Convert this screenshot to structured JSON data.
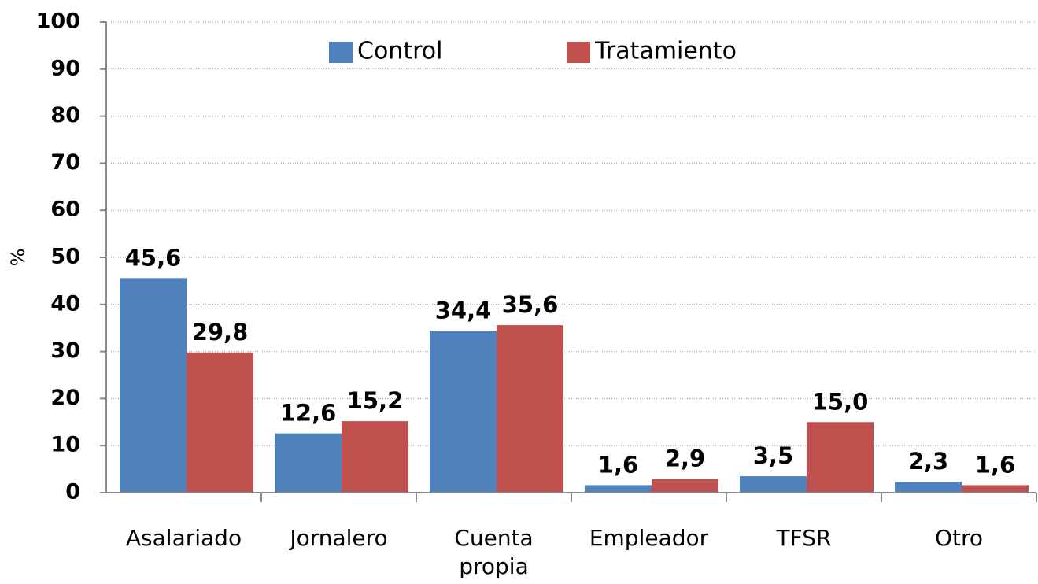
{
  "chart_data": {
    "type": "bar",
    "y_label": "%",
    "categories": [
      "Asalariado",
      "Jornalero",
      "Cuenta propia",
      "Empleador",
      "TFSR",
      "Otro"
    ],
    "series": [
      {
        "name": "Control",
        "color": "#4f81bd",
        "values": [
          45.6,
          12.6,
          34.4,
          1.6,
          3.5,
          2.3
        ],
        "value_labels": [
          "45,6",
          "12,6",
          "34,4",
          "1,6",
          "3,5",
          "2,3"
        ]
      },
      {
        "name": "Tratamiento",
        "color": "#c0504d",
        "values": [
          29.8,
          15.2,
          35.6,
          2.9,
          15.0,
          1.6
        ],
        "value_labels": [
          "29,8",
          "15,2",
          "35,6",
          "2,9",
          "15,0",
          "1,6"
        ]
      }
    ],
    "ylim": [
      0,
      100
    ],
    "yticks": [
      0,
      10,
      20,
      30,
      40,
      50,
      60,
      70,
      80,
      90,
      100
    ],
    "grid": true,
    "legend": "top"
  }
}
